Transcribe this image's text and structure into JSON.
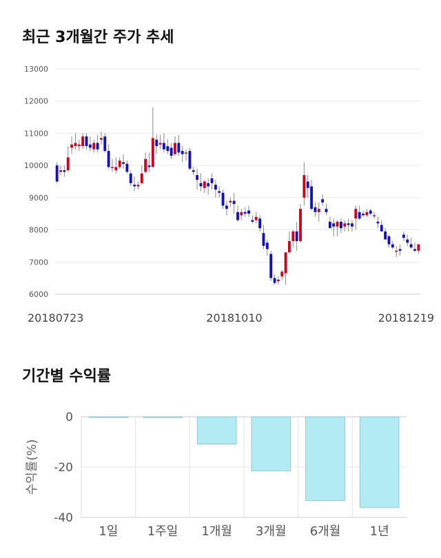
{
  "section_price": {
    "title": "최근 3개월간 주가 추세"
  },
  "section_return": {
    "title": "기간별 수익률"
  },
  "chart_data": [
    {
      "type": "candlestick",
      "title": "최근 3개월간 주가 추세",
      "ylim": [
        6000,
        13000
      ],
      "yticks": [
        "13000",
        "12000",
        "11000",
        "10000",
        "9000",
        "8000",
        "7000",
        "6000"
      ],
      "xtick_labels": [
        "20180723",
        "20181010",
        "20181219"
      ],
      "grid": true,
      "colors": {
        "up": "#d0021b",
        "down": "#1010c8",
        "wick": "#888888"
      },
      "series": [
        [
          10000,
          10100,
          9450,
          9500
        ],
        [
          9800,
          10000,
          9700,
          9850
        ],
        [
          9850,
          10000,
          9650,
          9800
        ],
        [
          9850,
          10600,
          9800,
          10250
        ],
        [
          10550,
          10900,
          10350,
          10650
        ],
        [
          10600,
          11000,
          10500,
          10700
        ],
        [
          10600,
          10800,
          10450,
          10650
        ],
        [
          10600,
          11000,
          10500,
          10900
        ],
        [
          10900,
          11000,
          10500,
          10600
        ],
        [
          10650,
          10900,
          10450,
          10550
        ],
        [
          10500,
          10800,
          10400,
          10700
        ],
        [
          10700,
          10950,
          10400,
          10500
        ],
        [
          10800,
          11050,
          10650,
          10850
        ],
        [
          10900,
          11000,
          10400,
          10450
        ],
        [
          10450,
          10650,
          9900,
          9950
        ],
        [
          9950,
          10200,
          9800,
          9950
        ],
        [
          9850,
          10250,
          9750,
          9950
        ],
        [
          9950,
          10250,
          9900,
          10150
        ],
        [
          10100,
          10350,
          9900,
          10050
        ],
        [
          10050,
          10150,
          9750,
          9800
        ],
        [
          9750,
          9850,
          9350,
          9450
        ],
        [
          9400,
          9650,
          9200,
          9350
        ],
        [
          9350,
          9500,
          9250,
          9400
        ],
        [
          9450,
          10000,
          9400,
          9750
        ],
        [
          9800,
          10400,
          9750,
          10200
        ],
        [
          10000,
          10400,
          9800,
          9950
        ],
        [
          9950,
          11800,
          9950,
          10850
        ],
        [
          10800,
          10950,
          10350,
          10600
        ],
        [
          10650,
          10950,
          10500,
          10700
        ],
        [
          10700,
          11000,
          10400,
          10500
        ],
        [
          10600,
          10800,
          10350,
          10450
        ],
        [
          10550,
          10700,
          10200,
          10300
        ],
        [
          10350,
          10900,
          10300,
          10700
        ],
        [
          10700,
          10950,
          10300,
          10400
        ],
        [
          10450,
          10600,
          10100,
          10350
        ],
        [
          10400,
          10500,
          10150,
          10400
        ],
        [
          10450,
          10550,
          9850,
          9900
        ],
        [
          9850,
          9950,
          9700,
          9800
        ],
        [
          9700,
          9900,
          9250,
          9550
        ],
        [
          9450,
          9750,
          9200,
          9350
        ],
        [
          9300,
          9550,
          9150,
          9500
        ],
        [
          9450,
          9600,
          9100,
          9350
        ],
        [
          9600,
          9750,
          9250,
          9450
        ],
        [
          9400,
          9550,
          9000,
          9250
        ],
        [
          9200,
          9350,
          9000,
          9150
        ],
        [
          9150,
          9250,
          8650,
          8750
        ],
        [
          8750,
          8900,
          8450,
          8650
        ],
        [
          8850,
          9000,
          8700,
          8900
        ],
        [
          8900,
          9150,
          8500,
          8800
        ],
        [
          8550,
          8750,
          8250,
          8300
        ],
        [
          8450,
          8650,
          8300,
          8550
        ],
        [
          8550,
          8700,
          8400,
          8500
        ],
        [
          8600,
          8750,
          8400,
          8500
        ],
        [
          8300,
          8450,
          8200,
          8250
        ],
        [
          8300,
          8550,
          8200,
          8400
        ],
        [
          8350,
          8450,
          7950,
          8050
        ],
        [
          7900,
          8150,
          7400,
          7500
        ],
        [
          7600,
          7700,
          7200,
          7400
        ],
        [
          7250,
          7350,
          6400,
          6500
        ],
        [
          6500,
          6600,
          6300,
          6350
        ],
        [
          6400,
          6550,
          6300,
          6450
        ],
        [
          6550,
          6750,
          6450,
          6700
        ],
        [
          6650,
          6750,
          6300,
          7300
        ],
        [
          7300,
          7950,
          7250,
          7650
        ],
        [
          7650,
          8000,
          7450,
          7950
        ],
        [
          7950,
          8250,
          7350,
          7650
        ],
        [
          7650,
          8800,
          7600,
          8650
        ],
        [
          9000,
          10100,
          8750,
          9700
        ],
        [
          9500,
          9700,
          9000,
          9300
        ],
        [
          9350,
          9550,
          8600,
          8650
        ],
        [
          8700,
          8850,
          8400,
          8550
        ],
        [
          8550,
          8850,
          8250,
          8650
        ],
        [
          8950,
          9100,
          8750,
          8850
        ],
        [
          8650,
          8800,
          8450,
          8550
        ],
        [
          8250,
          8400,
          8050,
          8050
        ],
        [
          8200,
          8350,
          7800,
          8100
        ],
        [
          8100,
          8300,
          7800,
          8250
        ],
        [
          8250,
          8350,
          7900,
          8050
        ],
        [
          8100,
          8300,
          7950,
          8200
        ],
        [
          8200,
          8350,
          7950,
          8150
        ],
        [
          8200,
          8300,
          7950,
          8100
        ],
        [
          8350,
          8750,
          8000,
          8650
        ],
        [
          8550,
          8750,
          8300,
          8350
        ],
        [
          8500,
          8600,
          8400,
          8450
        ],
        [
          8450,
          8650,
          8400,
          8550
        ],
        [
          8600,
          8650,
          8450,
          8500
        ],
        [
          8450,
          8550,
          8350,
          8450
        ],
        [
          8250,
          8400,
          8050,
          8200
        ],
        [
          8150,
          8300,
          7950,
          7950
        ],
        [
          7950,
          8050,
          7700,
          7700
        ],
        [
          7800,
          7850,
          7450,
          7550
        ],
        [
          7550,
          7650,
          7400,
          7450
        ],
        [
          7350,
          7500,
          7150,
          7350
        ],
        [
          7400,
          7550,
          7200,
          7350
        ],
        [
          7850,
          7950,
          7650,
          7750
        ],
        [
          7700,
          7850,
          7500,
          7600
        ],
        [
          7550,
          7750,
          7400,
          7450
        ],
        [
          7400,
          7600,
          7300,
          7350
        ],
        [
          7350,
          7550,
          7250,
          7550
        ]
      ]
    },
    {
      "type": "bar",
      "title": "기간별 수익률",
      "ylabel": "수익률(%)",
      "ylim": [
        -40,
        0
      ],
      "yticks": [
        "0",
        "-20",
        "-40"
      ],
      "categories": [
        "1일",
        "1주일",
        "1개월",
        "3개월",
        "6개월",
        "1년"
      ],
      "values": [
        0.0,
        -0.3,
        -10.8,
        -21.5,
        -33.3,
        -36.1
      ],
      "colors": {
        "bar": "#b3ebf2",
        "bar_edge": "#93c6d6"
      },
      "grid": true
    }
  ]
}
